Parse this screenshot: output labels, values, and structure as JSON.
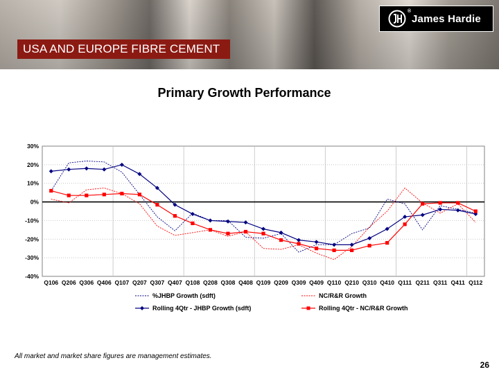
{
  "brand": {
    "name": "James Hardie",
    "reg_mark": "®"
  },
  "section_title": "USA AND EUROPE FIBRE CEMENT",
  "footnote": "All market and market share figures are management estimates.",
  "page_number": "26",
  "colors": {
    "navy": "#000080",
    "red": "#ff0000",
    "banner": "#8b1a13"
  },
  "chart_data": {
    "type": "line",
    "title": "Primary Growth Performance",
    "xlabel": "",
    "ylabel": "",
    "ylim": [
      -40,
      30
    ],
    "y_ticks": [
      "30%",
      "20%",
      "10%",
      "0%",
      "-10%",
      "-20%",
      "-30%",
      "-40%"
    ],
    "categories": [
      "Q106",
      "Q206",
      "Q306",
      "Q406",
      "Q107",
      "Q207",
      "Q307",
      "Q407",
      "Q108",
      "Q208",
      "Q308",
      "Q408",
      "Q109",
      "Q209",
      "Q309",
      "Q409",
      "Q110",
      "Q210",
      "Q310",
      "Q410",
      "Q111",
      "Q211",
      "Q311",
      "Q411",
      "Q112"
    ],
    "series": [
      {
        "name": "%JHBP Growth (sdft)",
        "style": "dotted",
        "color": "#000080",
        "marker": "none",
        "values": [
          6,
          21,
          22,
          21.5,
          16,
          4,
          -8,
          -15.5,
          -6,
          -10,
          -10,
          -19,
          -19.5,
          -17,
          -27,
          -23,
          -23,
          -17,
          -14,
          1.5,
          -1,
          -15,
          -2,
          -4,
          -6
        ]
      },
      {
        "name": "NC/R&R Growth",
        "style": "dotted",
        "color": "#ff0000",
        "marker": "none",
        "values": [
          1.5,
          -0.5,
          6.5,
          7.5,
          4.5,
          -1,
          -13,
          -18,
          -16.5,
          -15,
          -18.5,
          -16,
          -25,
          -25.5,
          -23,
          -27.5,
          -31,
          -24,
          -13.5,
          -5,
          7.5,
          -0.5,
          -6,
          -1,
          -11
        ]
      },
      {
        "name": "Rolling 4Qtr - JHBP Growth (sdft)",
        "style": "solid",
        "color": "#000080",
        "marker": "diamond",
        "values": [
          16.5,
          17.5,
          18,
          17.5,
          20,
          15,
          7.5,
          -1.5,
          -6.5,
          -10,
          -10.5,
          -11,
          -14.5,
          -16.5,
          -20.5,
          -21.5,
          -23,
          -23,
          -19.5,
          -14.5,
          -8,
          -7,
          -4,
          -4.5,
          -6.5
        ]
      },
      {
        "name": "Rolling 4Qtr - NC/R&R Growth",
        "style": "solid",
        "color": "#ff0000",
        "marker": "square",
        "values": [
          6,
          3.5,
          3.5,
          4,
          4.5,
          4,
          -1.5,
          -7.5,
          -11.5,
          -15,
          -17,
          -16,
          -17,
          -20.5,
          -22.5,
          -25,
          -26,
          -26,
          -23.5,
          -22,
          -12,
          -1,
          -0.5,
          -0.5,
          -5
        ]
      }
    ],
    "legend_position": "bottom",
    "grid": true
  }
}
